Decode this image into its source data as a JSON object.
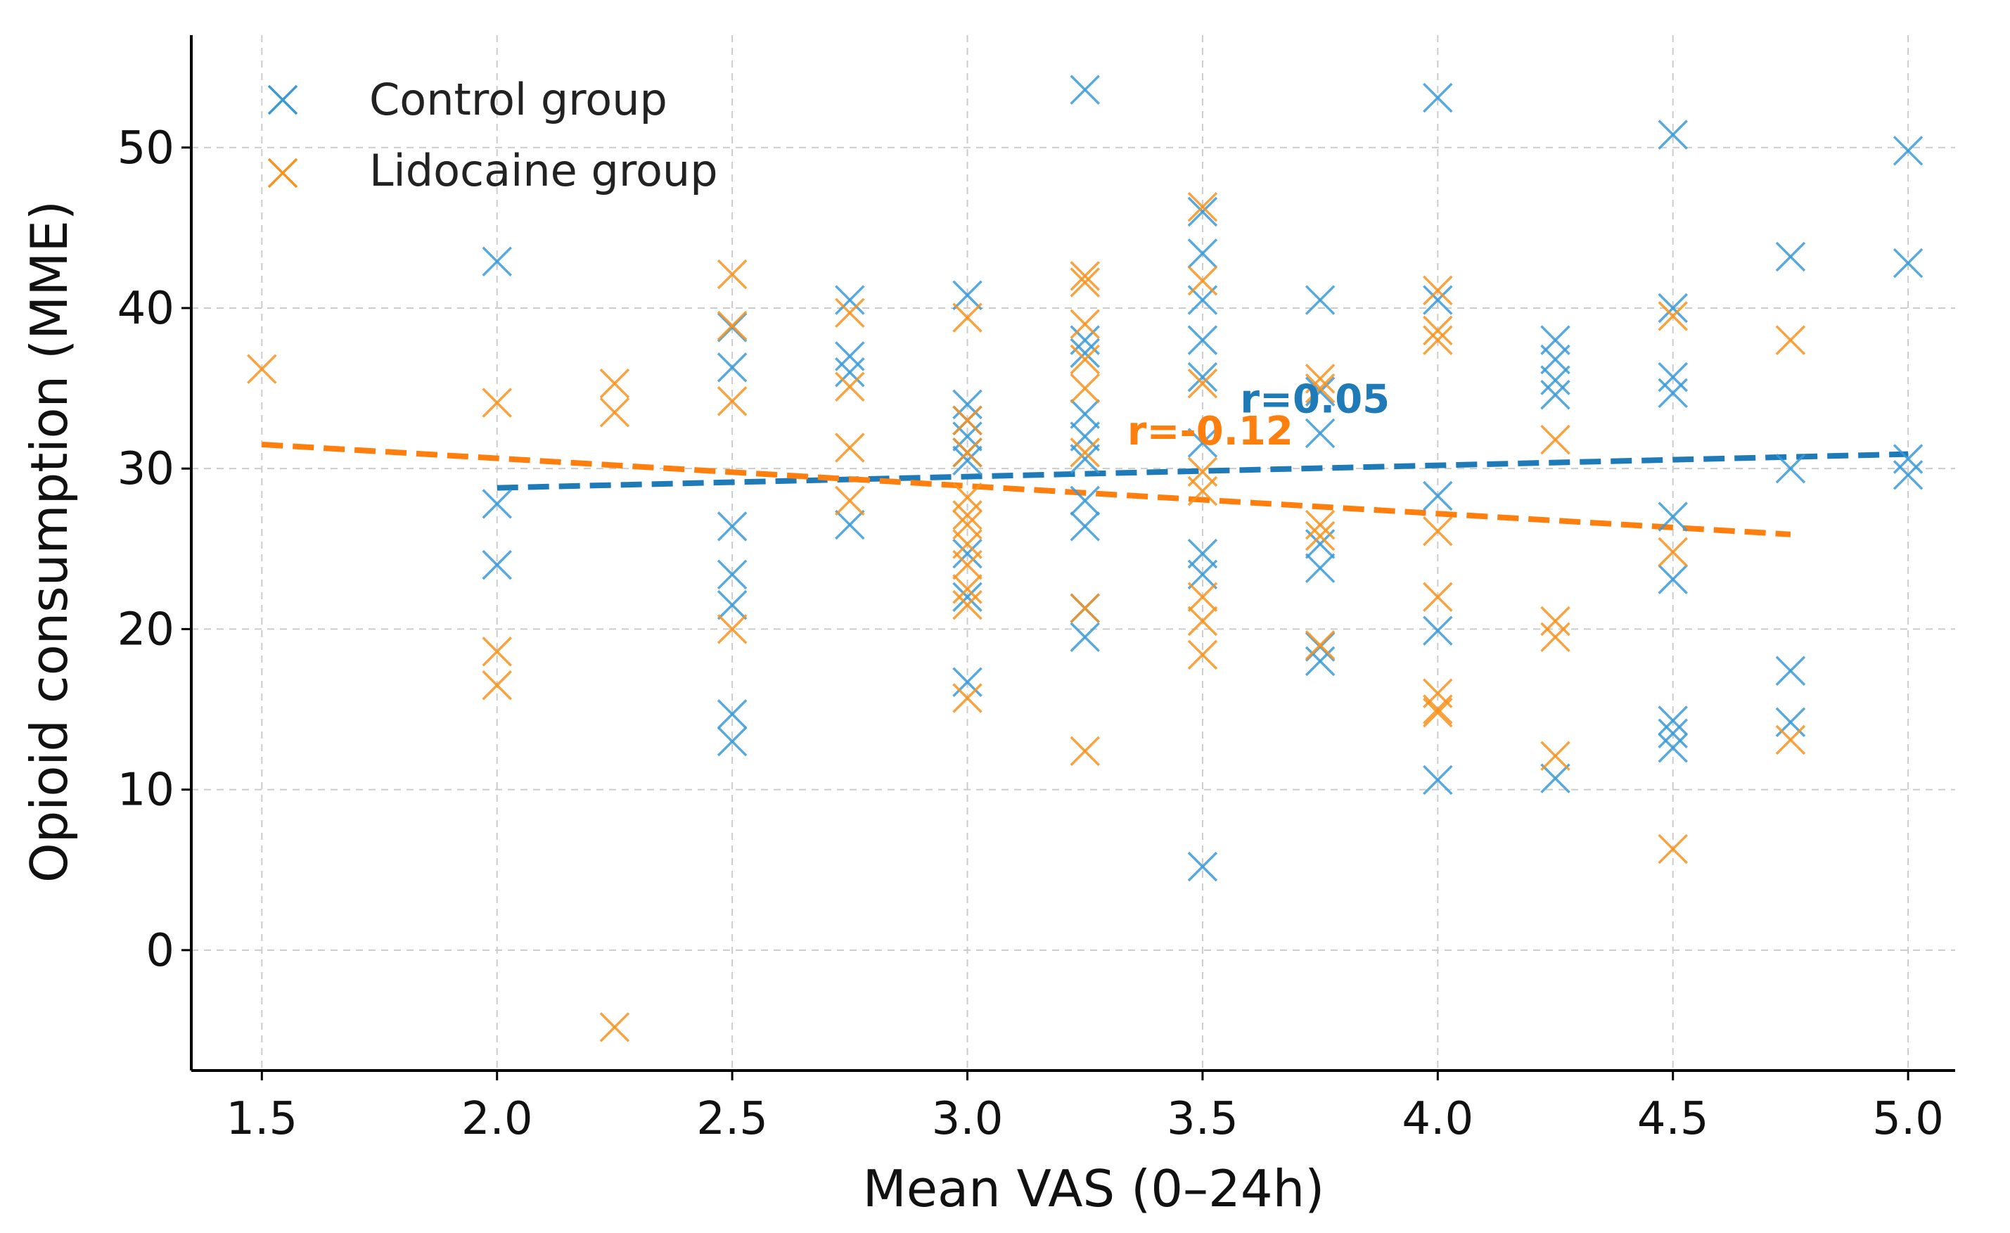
{
  "chart_data": {
    "type": "scatter",
    "title": "",
    "xlabel": "Mean VAS (0–24h)",
    "ylabel": "Opioid consumption (MME)",
    "xlim": [
      1.35,
      5.1
    ],
    "ylim": [
      -7.5,
      57
    ],
    "xticks": [
      1.5,
      2.0,
      2.5,
      3.0,
      3.5,
      4.0,
      4.5,
      5.0
    ],
    "xtick_labels": [
      "1.5",
      "2.0",
      "2.5",
      "3.0",
      "3.5",
      "4.0",
      "4.5",
      "5.0"
    ],
    "yticks": [
      0,
      10,
      20,
      30,
      40,
      50
    ],
    "ytick_labels": [
      "0",
      "10",
      "20",
      "30",
      "40",
      "50"
    ],
    "grid": true,
    "legend": {
      "position": "top-left",
      "entries": [
        "Control group",
        "Lidocaine group"
      ]
    },
    "series": [
      {
        "name": "Control group",
        "color": "#3a9ad8",
        "marker": "x",
        "points": [
          [
            2.0,
            42.9
          ],
          [
            2.0,
            27.8
          ],
          [
            2.0,
            24.0
          ],
          [
            2.5,
            38.8
          ],
          [
            2.5,
            36.3
          ],
          [
            2.5,
            26.4
          ],
          [
            2.5,
            23.4
          ],
          [
            2.5,
            21.5
          ],
          [
            2.5,
            14.7
          ],
          [
            2.5,
            13.0
          ],
          [
            2.75,
            40.5
          ],
          [
            2.75,
            37.0
          ],
          [
            2.75,
            36.0
          ],
          [
            2.75,
            26.5
          ],
          [
            3.0,
            40.8
          ],
          [
            3.0,
            34.0
          ],
          [
            3.0,
            33.0
          ],
          [
            3.0,
            32.0
          ],
          [
            3.0,
            31.0
          ],
          [
            3.0,
            30.5
          ],
          [
            3.0,
            24.7
          ],
          [
            3.0,
            22.0
          ],
          [
            3.0,
            16.7
          ],
          [
            3.25,
            53.6
          ],
          [
            3.25,
            38.0
          ],
          [
            3.25,
            37.2
          ],
          [
            3.25,
            33.4
          ],
          [
            3.25,
            32.0
          ],
          [
            3.25,
            30.6
          ],
          [
            3.25,
            28.0
          ],
          [
            3.25,
            26.4
          ],
          [
            3.25,
            21.3
          ],
          [
            3.25,
            19.5
          ],
          [
            3.5,
            46.0
          ],
          [
            3.5,
            43.4
          ],
          [
            3.5,
            40.5
          ],
          [
            3.5,
            38.0
          ],
          [
            3.5,
            35.7
          ],
          [
            3.5,
            31.6
          ],
          [
            3.5,
            24.7
          ],
          [
            3.5,
            23.4
          ],
          [
            3.5,
            5.2
          ],
          [
            3.75,
            40.5
          ],
          [
            3.75,
            34.8
          ],
          [
            3.75,
            32.2
          ],
          [
            3.75,
            25.3
          ],
          [
            3.75,
            23.8
          ],
          [
            3.75,
            18.9
          ],
          [
            3.75,
            18.0
          ],
          [
            4.0,
            53.1
          ],
          [
            4.0,
            40.5
          ],
          [
            4.0,
            28.3
          ],
          [
            4.0,
            19.9
          ],
          [
            4.0,
            10.6
          ],
          [
            4.25,
            38.0
          ],
          [
            4.25,
            36.8
          ],
          [
            4.25,
            35.5
          ],
          [
            4.25,
            34.6
          ],
          [
            4.25,
            10.7
          ],
          [
            4.5,
            50.8
          ],
          [
            4.5,
            40.0
          ],
          [
            4.5,
            35.7
          ],
          [
            4.5,
            34.7
          ],
          [
            4.5,
            27.0
          ],
          [
            4.5,
            23.1
          ],
          [
            4.5,
            14.3
          ],
          [
            4.5,
            13.5
          ],
          [
            4.5,
            12.6
          ],
          [
            4.75,
            43.2
          ],
          [
            4.75,
            30.0
          ],
          [
            4.75,
            17.4
          ],
          [
            4.75,
            14.2
          ],
          [
            5.0,
            49.8
          ],
          [
            5.0,
            42.8
          ],
          [
            5.0,
            30.6
          ],
          [
            5.0,
            29.6
          ]
        ],
        "trend": {
          "x": [
            2.0,
            5.0
          ],
          "y": [
            28.8,
            30.9
          ]
        },
        "annotation": "r=0.05",
        "annotation_at": [
          3.58,
          33.5
        ]
      },
      {
        "name": "Lidocaine group",
        "color": "#f7931e",
        "marker": "x",
        "points": [
          [
            1.5,
            36.2
          ],
          [
            2.0,
            34.1
          ],
          [
            2.0,
            18.6
          ],
          [
            2.0,
            16.5
          ],
          [
            2.25,
            35.3
          ],
          [
            2.25,
            33.5
          ],
          [
            2.25,
            -4.8
          ],
          [
            2.5,
            42.1
          ],
          [
            2.5,
            38.9
          ],
          [
            2.5,
            34.2
          ],
          [
            2.5,
            20.0
          ],
          [
            2.75,
            39.7
          ],
          [
            2.75,
            35.1
          ],
          [
            2.75,
            31.3
          ],
          [
            2.75,
            28.0
          ],
          [
            3.0,
            39.4
          ],
          [
            3.0,
            33.0
          ],
          [
            3.0,
            31.0
          ],
          [
            3.0,
            28.2
          ],
          [
            3.0,
            27.1
          ],
          [
            3.0,
            26.5
          ],
          [
            3.0,
            25.3
          ],
          [
            3.0,
            24.0
          ],
          [
            3.0,
            22.5
          ],
          [
            3.0,
            21.5
          ],
          [
            3.0,
            15.7
          ],
          [
            3.25,
            42.0
          ],
          [
            3.25,
            41.6
          ],
          [
            3.25,
            39.0
          ],
          [
            3.25,
            36.8
          ],
          [
            3.25,
            35.0
          ],
          [
            3.25,
            31.0
          ],
          [
            3.25,
            21.3
          ],
          [
            3.25,
            12.4
          ],
          [
            3.5,
            46.3
          ],
          [
            3.5,
            41.7
          ],
          [
            3.5,
            35.3
          ],
          [
            3.5,
            29.8
          ],
          [
            3.5,
            28.6
          ],
          [
            3.5,
            22.0
          ],
          [
            3.5,
            20.5
          ],
          [
            3.5,
            18.4
          ],
          [
            3.75,
            35.6
          ],
          [
            3.75,
            35.0
          ],
          [
            3.75,
            26.5
          ],
          [
            3.75,
            25.8
          ],
          [
            3.75,
            19.0
          ],
          [
            4.0,
            41.1
          ],
          [
            4.0,
            38.6
          ],
          [
            4.0,
            38.0
          ],
          [
            4.0,
            26.1
          ],
          [
            4.0,
            22.0
          ],
          [
            4.0,
            16.0
          ],
          [
            4.0,
            15.0
          ],
          [
            4.0,
            14.8
          ],
          [
            4.25,
            31.8
          ],
          [
            4.25,
            20.5
          ],
          [
            4.25,
            19.5
          ],
          [
            4.25,
            12.1
          ],
          [
            4.5,
            39.5
          ],
          [
            4.5,
            24.8
          ],
          [
            4.5,
            6.3
          ],
          [
            4.75,
            38.0
          ],
          [
            4.75,
            13.1
          ]
        ],
        "trend": {
          "x": [
            1.5,
            4.75
          ],
          "y": [
            31.5,
            25.9
          ]
        },
        "annotation": "r=-0.12",
        "annotation_at": [
          3.34,
          31.5
        ]
      }
    ]
  }
}
